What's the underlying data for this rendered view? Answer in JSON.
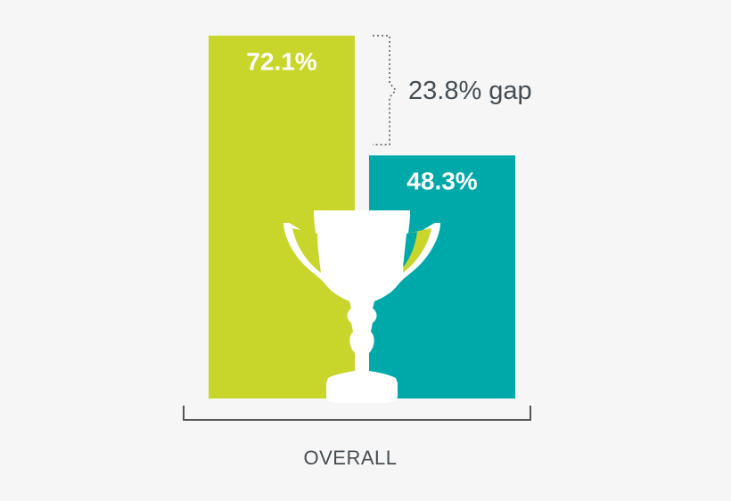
{
  "chart_data": {
    "type": "bar",
    "categories": [
      "OVERALL"
    ],
    "series": [
      {
        "color": "#c8d62b",
        "values": [
          72.1
        ],
        "value_labels": [
          "72.1%"
        ]
      },
      {
        "color": "#00a9a9",
        "values": [
          48.3
        ],
        "value_labels": [
          "48.3%"
        ]
      }
    ],
    "annotation": "23.8% gap"
  }
}
